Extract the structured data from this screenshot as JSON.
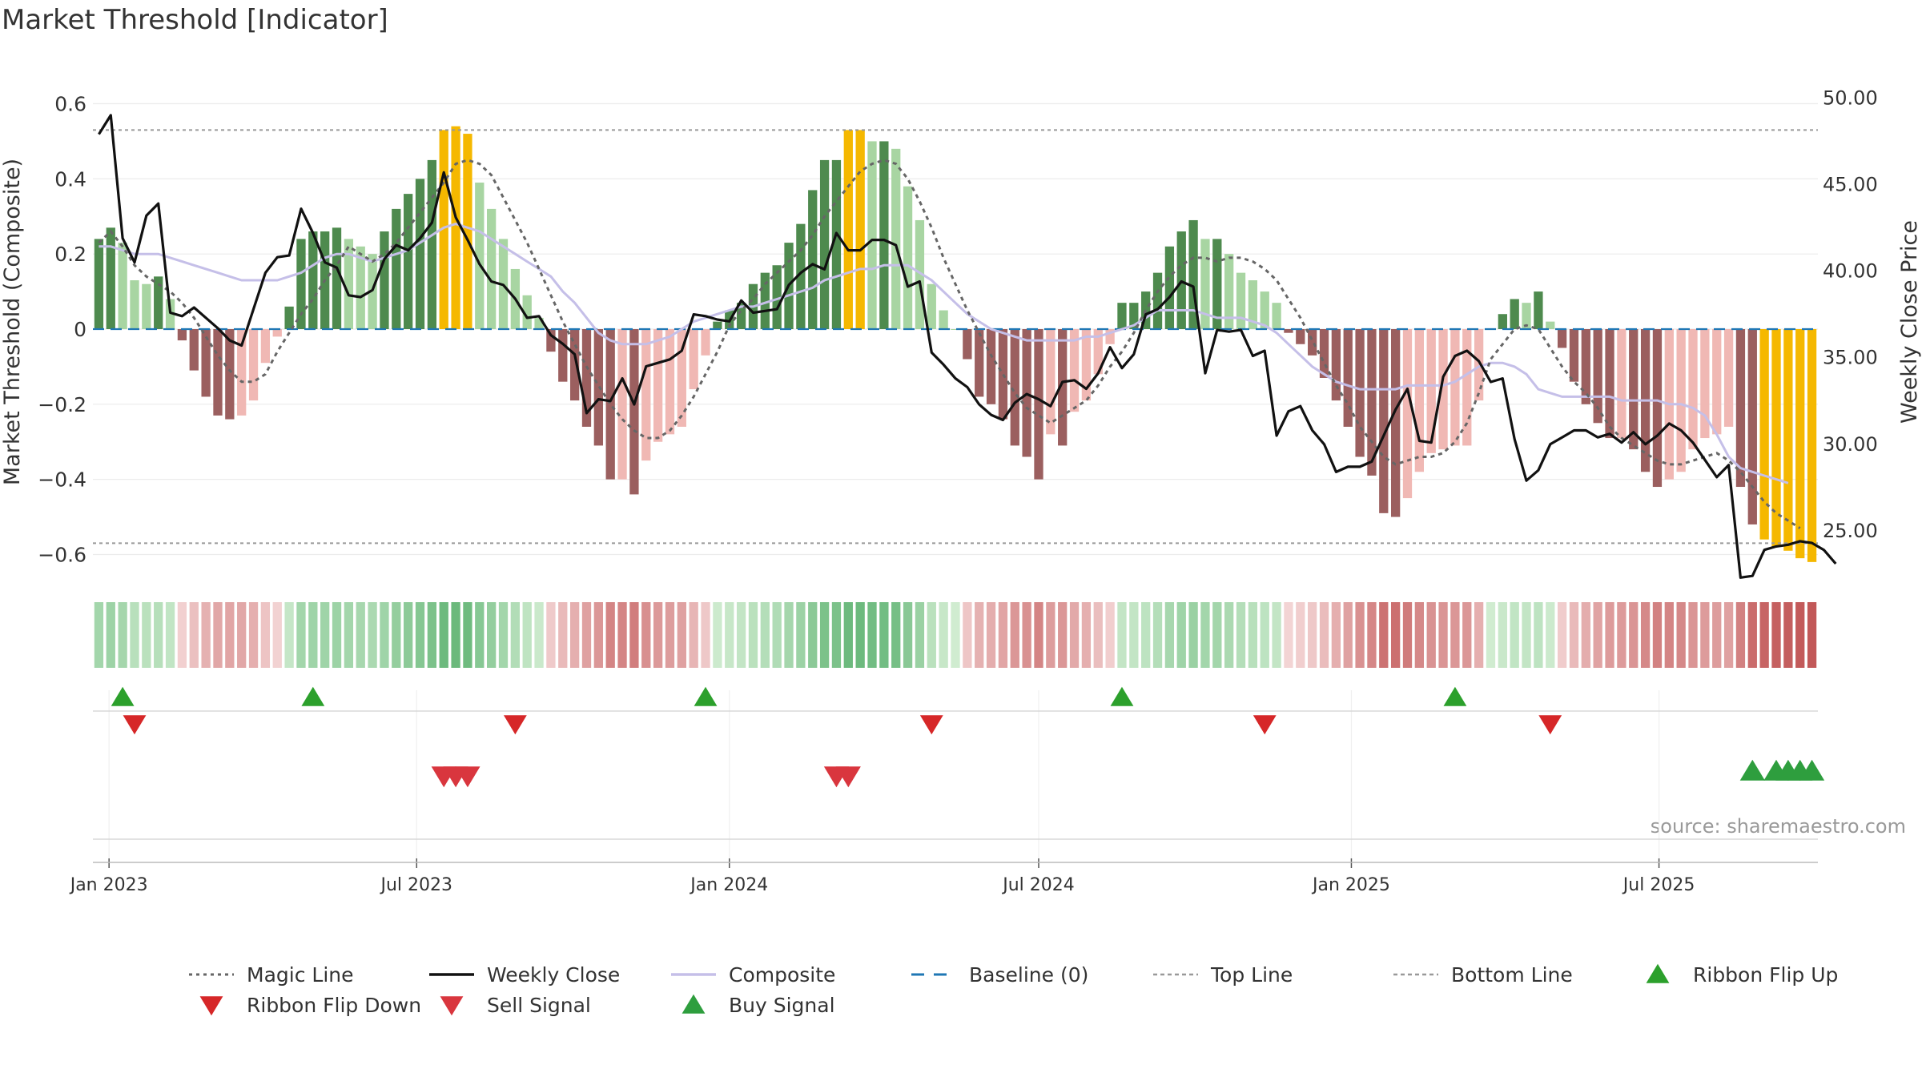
{
  "chart_data": {
    "type": "bar",
    "title": "Market Threshold [Indicator]",
    "ylabel": "Market Threshold (Composite)",
    "y2label": "Weekly Close Price",
    "source": "source: sharemaestro.com",
    "ylim": [
      -0.68,
      0.68
    ],
    "y2lim": [
      21.9,
      51.4
    ],
    "yticks": [
      0.6,
      0.4,
      0.2,
      0,
      -0.2,
      -0.4,
      -0.6
    ],
    "ytick_labels": [
      "0.6",
      "0.4",
      "0.2",
      "0",
      "−0.2",
      "−0.4",
      "−0.6"
    ],
    "y2ticks": [
      50,
      45,
      40,
      35,
      30,
      25
    ],
    "y2tick_labels": [
      "50.00",
      "45.00",
      "40.00",
      "35.00",
      "30.00",
      "25.00"
    ],
    "x_start": "2022-12-26",
    "x_step_days": 7,
    "xticks": [
      "Jan 2023",
      "Jul 2023",
      "Jan 2024",
      "Jul 2024",
      "Jan 2025",
      "Jul 2025"
    ],
    "xtick_dates": [
      "2023-01-01",
      "2023-07-01",
      "2024-01-01",
      "2024-07-01",
      "2025-01-01",
      "2025-07-01"
    ],
    "top_line": 0.53,
    "bottom_line": -0.57,
    "grid": true,
    "legend_position": "bottom",
    "composite": [
      0.24,
      0.27,
      0.23,
      0.13,
      0.12,
      0.14,
      0.08,
      -0.03,
      -0.11,
      -0.18,
      -0.23,
      -0.24,
      -0.23,
      -0.19,
      -0.09,
      -0.02,
      0.06,
      0.24,
      0.26,
      0.26,
      0.27,
      0.24,
      0.22,
      0.2,
      0.26,
      0.32,
      0.36,
      0.4,
      0.45,
      0.53,
      0.54,
      0.52,
      0.39,
      0.32,
      0.24,
      0.16,
      0.09,
      0.03,
      -0.06,
      -0.14,
      -0.19,
      -0.26,
      -0.31,
      -0.4,
      -0.4,
      -0.44,
      -0.35,
      -0.3,
      -0.28,
      -0.26,
      -0.16,
      -0.07,
      0.02,
      0.05,
      0.07,
      0.12,
      0.15,
      0.17,
      0.23,
      0.28,
      0.37,
      0.45,
      0.45,
      0.53,
      0.53,
      0.5,
      0.5,
      0.48,
      0.38,
      0.29,
      0.12,
      0.05,
      0.0,
      -0.08,
      -0.18,
      -0.2,
      -0.24,
      -0.31,
      -0.34,
      -0.4,
      -0.28,
      -0.31,
      -0.22,
      -0.19,
      -0.12,
      -0.04,
      0.07,
      0.07,
      0.1,
      0.15,
      0.22,
      0.26,
      0.29,
      0.24,
      0.24,
      0.2,
      0.15,
      0.13,
      0.1,
      0.07,
      -0.01,
      -0.04,
      -0.07,
      -0.13,
      -0.19,
      -0.26,
      -0.34,
      -0.39,
      -0.49,
      -0.5,
      -0.45,
      -0.38,
      -0.33,
      -0.32,
      -0.31,
      -0.31,
      -0.19,
      -0.0,
      0.04,
      0.08,
      0.07,
      0.1,
      0.02,
      -0.05,
      -0.14,
      -0.2,
      -0.25,
      -0.29,
      -0.29,
      -0.32,
      -0.38,
      -0.42,
      -0.4,
      -0.38,
      -0.32,
      -0.29,
      -0.28,
      -0.26,
      -0.42,
      -0.52,
      -0.56,
      -0.58,
      -0.59,
      -0.61,
      -0.62
    ],
    "zone_highlight": [
      0,
      0,
      0,
      0,
      0,
      0,
      0,
      0,
      0,
      0,
      0,
      0,
      0,
      0,
      0,
      0,
      0,
      0,
      0,
      0,
      0,
      0,
      0,
      0,
      0,
      0,
      0,
      0,
      0,
      1,
      1,
      1,
      0,
      0,
      0,
      0,
      0,
      0,
      0,
      0,
      0,
      0,
      0,
      0,
      0,
      0,
      0,
      0,
      0,
      0,
      0,
      0,
      0,
      0,
      0,
      0,
      0,
      0,
      0,
      0,
      0,
      0,
      0,
      1,
      1,
      0,
      0,
      0,
      0,
      0,
      0,
      0,
      0,
      0,
      0,
      0,
      0,
      0,
      0,
      0,
      0,
      0,
      0,
      0,
      0,
      0,
      0,
      0,
      0,
      0,
      0,
      0,
      0,
      0,
      0,
      0,
      0,
      0,
      0,
      0,
      0,
      0,
      0,
      0,
      0,
      0,
      0,
      0,
      0,
      0,
      0,
      0,
      0,
      0,
      0,
      0,
      0,
      0,
      0,
      0,
      0,
      0,
      0,
      0,
      0,
      0,
      0,
      0,
      0,
      0,
      0,
      0,
      0,
      0,
      0,
      0,
      0,
      0,
      0,
      0,
      1,
      1,
      1,
      1,
      1,
      1
    ],
    "weekly_close": [
      47.9,
      49.0,
      41.9,
      40.5,
      43.2,
      43.9,
      37.6,
      37.4,
      37.9,
      37.3,
      36.7,
      36.0,
      35.7,
      37.8,
      39.9,
      40.8,
      40.9,
      43.6,
      42.2,
      40.5,
      40.2,
      38.6,
      38.5,
      38.9,
      40.7,
      41.5,
      41.2,
      41.9,
      42.8,
      45.7,
      43.1,
      41.8,
      40.4,
      39.4,
      39.2,
      38.4,
      37.3,
      37.4,
      36.3,
      35.8,
      35.2,
      31.8,
      32.6,
      32.5,
      33.8,
      32.3,
      34.5,
      34.7,
      34.9,
      35.4,
      37.5,
      37.4,
      37.2,
      37.1,
      38.3,
      37.6,
      37.7,
      37.8,
      39.2,
      39.9,
      40.4,
      40.1,
      42.2,
      41.2,
      41.2,
      41.8,
      41.8,
      41.5,
      39.1,
      39.4,
      35.3,
      34.6,
      33.8,
      33.3,
      32.3,
      31.7,
      31.4,
      32.4,
      32.9,
      32.6,
      32.2,
      33.6,
      33.7,
      33.2,
      34.1,
      35.6,
      34.4,
      35.2,
      37.5,
      37.8,
      38.5,
      39.4,
      39.1,
      34.1,
      36.6,
      36.5,
      36.6,
      35.1,
      35.4,
      30.5,
      31.9,
      32.2,
      30.8,
      30.0,
      28.4,
      28.7,
      28.7,
      29.0,
      30.5,
      32.0,
      33.2,
      30.2,
      30.1,
      33.9,
      35.1,
      35.4,
      34.8,
      33.6,
      33.8,
      30.3,
      27.9,
      28.5,
      30.0,
      30.4,
      30.8,
      30.8,
      30.4,
      30.6,
      30.1,
      30.7,
      30.0,
      30.5,
      31.2,
      30.8,
      30.1,
      29.1,
      28.1,
      28.8,
      22.3,
      22.4,
      23.9,
      24.1,
      24.2,
      24.4,
      24.3,
      23.9,
      23.1
    ],
    "magic_line": [
      0.23,
      0.26,
      0.22,
      0.17,
      0.14,
      0.12,
      0.1,
      0.07,
      0.03,
      -0.02,
      -0.07,
      -0.11,
      -0.14,
      -0.14,
      -0.12,
      -0.06,
      -0.01,
      0.04,
      0.08,
      0.13,
      0.17,
      0.22,
      0.2,
      0.18,
      0.2,
      0.23,
      0.27,
      0.31,
      0.35,
      0.39,
      0.44,
      0.45,
      0.44,
      0.41,
      0.35,
      0.29,
      0.23,
      0.16,
      0.09,
      0.02,
      -0.04,
      -0.1,
      -0.15,
      -0.2,
      -0.24,
      -0.27,
      -0.29,
      -0.29,
      -0.27,
      -0.23,
      -0.18,
      -0.12,
      -0.06,
      0.01,
      0.05,
      0.08,
      0.12,
      0.15,
      0.18,
      0.21,
      0.25,
      0.3,
      0.34,
      0.38,
      0.42,
      0.44,
      0.45,
      0.44,
      0.4,
      0.34,
      0.27,
      0.19,
      0.12,
      0.05,
      -0.01,
      -0.07,
      -0.12,
      -0.17,
      -0.21,
      -0.23,
      -0.25,
      -0.23,
      -0.21,
      -0.19,
      -0.15,
      -0.1,
      -0.06,
      -0.01,
      0.05,
      0.1,
      0.14,
      0.17,
      0.19,
      0.19,
      0.18,
      0.19,
      0.19,
      0.18,
      0.16,
      0.13,
      0.08,
      0.03,
      -0.03,
      -0.09,
      -0.15,
      -0.2,
      -0.26,
      -0.3,
      -0.34,
      -0.36,
      -0.35,
      -0.34,
      -0.34,
      -0.33,
      -0.3,
      -0.25,
      -0.17,
      -0.08,
      -0.04,
      0.0,
      0.01,
      0.0,
      -0.05,
      -0.1,
      -0.14,
      -0.17,
      -0.21,
      -0.26,
      -0.29,
      -0.31,
      -0.33,
      -0.35,
      -0.36,
      -0.36,
      -0.35,
      -0.34,
      -0.33,
      -0.35,
      -0.38,
      -0.42,
      -0.46,
      -0.49,
      -0.51,
      -0.53
    ],
    "composite_line": [
      0.22,
      0.22,
      0.21,
      0.2,
      0.2,
      0.2,
      0.19,
      0.18,
      0.17,
      0.16,
      0.15,
      0.14,
      0.13,
      0.13,
      0.13,
      0.13,
      0.14,
      0.15,
      0.17,
      0.19,
      0.2,
      0.2,
      0.19,
      0.18,
      0.19,
      0.2,
      0.21,
      0.23,
      0.25,
      0.27,
      0.28,
      0.27,
      0.26,
      0.24,
      0.22,
      0.2,
      0.18,
      0.16,
      0.14,
      0.1,
      0.07,
      0.03,
      -0.01,
      -0.03,
      -0.04,
      -0.04,
      -0.04,
      -0.03,
      -0.02,
      -0.0,
      0.02,
      0.03,
      0.04,
      0.05,
      0.06,
      0.06,
      0.07,
      0.08,
      0.09,
      0.1,
      0.11,
      0.13,
      0.14,
      0.15,
      0.16,
      0.16,
      0.17,
      0.17,
      0.17,
      0.15,
      0.13,
      0.1,
      0.07,
      0.04,
      0.02,
      0.0,
      -0.01,
      -0.02,
      -0.03,
      -0.03,
      -0.03,
      -0.03,
      -0.03,
      -0.02,
      -0.02,
      -0.01,
      -0.0,
      0.01,
      0.03,
      0.05,
      0.05,
      0.05,
      0.05,
      0.04,
      0.03,
      0.03,
      0.03,
      0.02,
      0.01,
      -0.01,
      -0.04,
      -0.07,
      -0.1,
      -0.12,
      -0.14,
      -0.15,
      -0.16,
      -0.16,
      -0.16,
      -0.16,
      -0.15,
      -0.15,
      -0.15,
      -0.15,
      -0.14,
      -0.12,
      -0.1,
      -0.09,
      -0.09,
      -0.1,
      -0.12,
      -0.16,
      -0.17,
      -0.18,
      -0.18,
      -0.18,
      -0.18,
      -0.18,
      -0.19,
      -0.19,
      -0.19,
      -0.19,
      -0.2,
      -0.2,
      -0.21,
      -0.23,
      -0.28,
      -0.34,
      -0.37,
      -0.38,
      -0.39,
      -0.4,
      -0.41
    ],
    "ribbon_flip_up": [
      2,
      18,
      51,
      86,
      114
    ],
    "ribbon_flip_down": [
      3,
      35,
      70,
      98,
      122
    ],
    "sell_signal": [
      29,
      30,
      31,
      62,
      63
    ],
    "buy_signal": [
      139,
      141,
      142,
      143,
      144
    ],
    "legend": [
      "Magic Line",
      "Weekly Close",
      "Composite",
      "Baseline (0)",
      "Top Line",
      "Bottom Line",
      "Ribbon Flip Up",
      "Ribbon Flip Down",
      "Sell Signal",
      "Buy Signal"
    ],
    "colors": {
      "strong_up": "#4e8a4e",
      "weak_up": "#a8d5a2",
      "strong_down": "#9b5f5f",
      "weak_down": "#f0b8b4",
      "threshold": "#f5b800",
      "weekly_close": "#111111",
      "composite_line": "#c5bfe8",
      "magic_line": "#666666",
      "baseline": "#1f77b4",
      "top_bottom": "#999999",
      "flip_up": "#2ca02c",
      "flip_down": "#d62728",
      "sell": "#d9363e",
      "buy": "#2e9e3e"
    }
  }
}
